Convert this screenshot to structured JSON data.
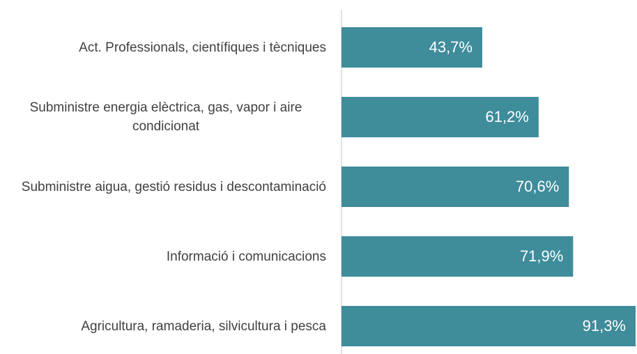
{
  "chart_data": {
    "type": "hbar",
    "categories": [
      "Act. Professionals, científiques i tècniques",
      "Subministre energia elèctrica, gas, vapor i aire condicionat",
      "Subministre aigua, gestió residus i descontaminació",
      "Informació i comunicacions",
      "Agricultura, ramaderia, silvicultura i pesca"
    ],
    "values": [
      43.7,
      61.2,
      70.6,
      71.9,
      91.3
    ],
    "value_labels": [
      "43,7%",
      "61,2%",
      "70,6%",
      "71,9%",
      "91,3%"
    ],
    "color": "#3f8c9b"
  }
}
